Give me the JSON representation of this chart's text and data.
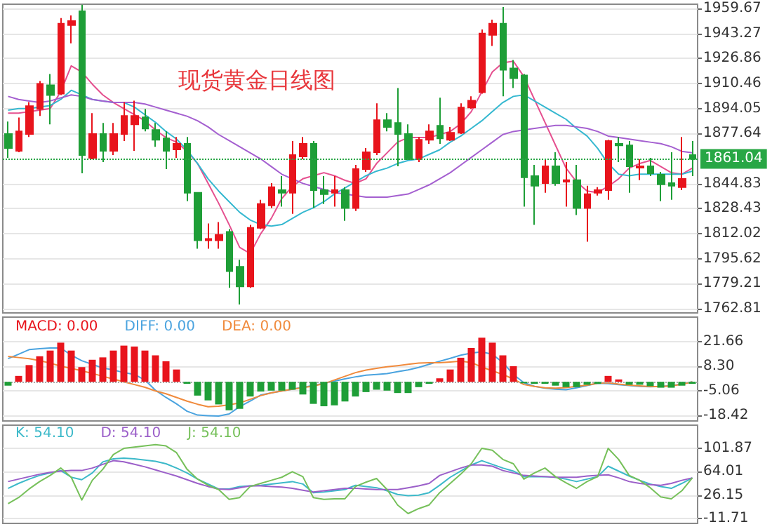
{
  "chart_data": [
    {
      "type": "candlestick",
      "title": "现货黄金日线图",
      "categories": [
        null,
        null,
        null,
        null,
        null,
        null,
        null,
        null,
        null,
        null,
        null,
        null,
        null,
        null,
        null,
        null,
        null,
        null,
        null,
        null,
        null,
        null,
        null,
        null,
        null,
        null,
        null,
        null,
        null,
        null,
        null,
        null,
        null,
        null,
        null,
        null,
        null,
        null,
        null,
        null,
        null,
        null,
        null,
        null,
        null,
        null,
        null,
        null,
        null,
        null,
        null,
        null,
        null,
        null,
        null,
        null,
        null,
        null,
        null,
        null,
        null,
        null,
        null,
        null,
        null,
        null
      ],
      "ohlc": [
        [
          1877.3,
          1885.5,
          1861.7,
          1868.1
        ],
        [
          1866.3,
          1888.2,
          1865.4,
          1879.1
        ],
        [
          1877.3,
          1898.3,
          1875.4,
          1895.6
        ],
        [
          1893.8,
          1912.1,
          1889.2,
          1910.2
        ],
        [
          1909.3,
          1916.6,
          1883.7,
          1902.9
        ],
        [
          1903.8,
          1953.3,
          1902.9,
          1949.6
        ],
        [
          1948.7,
          1955.1,
          1936.8,
          1951.4
        ],
        [
          1957.8,
          1962,
          1851.6,
          1863.5
        ],
        [
          1861.7,
          1891.0,
          1860.8,
          1877.3
        ],
        [
          1877.3,
          1884.6,
          1858.9,
          1866.3
        ],
        [
          1866.3,
          1884.6,
          1863.5,
          1877.3
        ],
        [
          1877.3,
          1898.3,
          1872.7,
          1889.2
        ],
        [
          1883.7,
          1899.2,
          1866.3,
          1889.2
        ],
        [
          1888.3,
          1893.8,
          1879.1,
          1880.9
        ],
        [
          1880.0,
          1884.6,
          1869.0,
          1873.6
        ],
        [
          1874.5,
          1879.1,
          1854.4,
          1866.3
        ],
        [
          1867.2,
          1875.4,
          1861.7,
          1870.9
        ],
        [
          1870.9,
          1875.4,
          1833.3,
          1838.8
        ],
        [
          1838.8,
          1838.8,
          1802.2,
          1807.7
        ],
        [
          1807.7,
          1818.7,
          1802.2,
          1808.6
        ],
        [
          1807.7,
          1819.6,
          1802.2,
          1811.3
        ],
        [
          1813.2,
          1815.0,
          1776.5,
          1787.5
        ],
        [
          1790.3,
          1794.9,
          1765.6,
          1777.5
        ],
        [
          1777.5,
          1817.8,
          1776.5,
          1815.9
        ],
        [
          1815.9,
          1834.2,
          1815.0,
          1831.5
        ],
        [
          1830.6,
          1845.2,
          1828.8,
          1842.5
        ],
        [
          1840.6,
          1849.8,
          1829.7,
          1838.8
        ],
        [
          1838.8,
          1872.7,
          1825.1,
          1863.5
        ],
        [
          1862.6,
          1875.4,
          1860.8,
          1870.9
        ],
        [
          1870.9,
          1872.7,
          1828.8,
          1840.6
        ],
        [
          1840.6,
          1849.8,
          1831.5,
          1837.9
        ],
        [
          1838.8,
          1849.8,
          1829.7,
          1840.6
        ],
        [
          1840.6,
          1842.5,
          1820.5,
          1828.8
        ],
        [
          1828.8,
          1857.1,
          1826.9,
          1854.4
        ],
        [
          1854.4,
          1868.1,
          1852.5,
          1865.4
        ],
        [
          1865.4,
          1897.4,
          1863.5,
          1886.4
        ],
        [
          1886.4,
          1891.0,
          1879.1,
          1881.9
        ],
        [
          1884.6,
          1907.5,
          1856.2,
          1877.3
        ],
        [
          1877.3,
          1883.7,
          1860.8,
          1860.8
        ],
        [
          1860.8,
          1875.4,
          1858.9,
          1873.6
        ],
        [
          1873.6,
          1883.7,
          1870.9,
          1879.1
        ],
        [
          1882.8,
          1901.1,
          1870.9,
          1874.5
        ],
        [
          1873.6,
          1881.9,
          1872.7,
          1878.2
        ],
        [
          1878.2,
          1897.4,
          1877.3,
          1894.7
        ],
        [
          1894.7,
          1902.0,
          1893.8,
          1899.2
        ],
        [
          1904.7,
          1945.9,
          1903.8,
          1943.2
        ],
        [
          1942.3,
          1952.3,
          1935.0,
          1949.6
        ],
        [
          1949.6,
          1960.6,
          1902.0,
          1919.4
        ],
        [
          1920.3,
          1925.8,
          1907.5,
          1913.9
        ],
        [
          1915.7,
          1916.6,
          1829.7,
          1848.9
        ],
        [
          1849.8,
          1857.1,
          1817.8,
          1843.4
        ],
        [
          1845.2,
          1860.8,
          1838.8,
          1856.2
        ],
        [
          1856.2,
          1865.4,
          1843.4,
          1845.2
        ],
        [
          1846.1,
          1858.9,
          1829.7,
          1847.1
        ],
        [
          1847.1,
          1857.1,
          1824.2,
          1828.8
        ],
        [
          1828.8,
          1843.4,
          1806.8,
          1837.9
        ],
        [
          1838.8,
          1842.5,
          1837.0,
          1840.6
        ],
        [
          1840.6,
          1873.6,
          1834.2,
          1872.7
        ],
        [
          1870.9,
          1875.4,
          1858.9,
          1869.9
        ],
        [
          1869.9,
          1872.7,
          1838.8,
          1856.2
        ],
        [
          1855.3,
          1860.8,
          1847.1,
          1856.2
        ],
        [
          1856.2,
          1861.7,
          1849.8,
          1851.6
        ],
        [
          1850.7,
          1852.5,
          1833.3,
          1844.3
        ],
        [
          1845.2,
          1865.4,
          1834.2,
          1843.4
        ],
        [
          1842.5,
          1875.4,
          1840.6,
          1847.9
        ],
        [
          1863.5,
          1872.7,
          1849.8,
          1861.04
        ]
      ],
      "colors": [
        "#1e9e37",
        "#e8141c",
        "#e8141c",
        "#e8141c",
        "#1e9e37",
        "#e8141c",
        "#e8141c",
        "#1e9e37",
        "#e8141c",
        "#1e9e37",
        "#e8141c",
        "#e8141c",
        "#e8141c",
        "#1e9e37",
        "#1e9e37",
        "#1e9e37",
        "#e8141c",
        "#1e9e37",
        "#1e9e37",
        "#e8141c",
        "#e8141c",
        "#1e9e37",
        "#1e9e37",
        "#e8141c",
        "#e8141c",
        "#e8141c",
        "#1e9e37",
        "#e8141c",
        "#e8141c",
        "#1e9e37",
        "#1e9e37",
        "#e8141c",
        "#1e9e37",
        "#e8141c",
        "#e8141c",
        "#e8141c",
        "#1e9e37",
        "#1e9e37",
        "#1e9e37",
        "#e8141c",
        "#e8141c",
        "#1e9e37",
        "#e8141c",
        "#e8141c",
        "#e8141c",
        "#e8141c",
        "#e8141c",
        "#1e9e37",
        "#1e9e37",
        "#1e9e37",
        "#1e9e37",
        "#e8141c",
        "#1e9e37",
        "#e8141c",
        "#1e9e37",
        "#e8141c",
        "#e8141c",
        "#e8141c",
        "#1e9e37",
        "#1e9e37",
        "#e8141c",
        "#1e9e37",
        "#1e9e37",
        "#1e9e37",
        "#e8141c",
        "#1e9e37"
      ],
      "series": [
        {
          "type": "line",
          "color": "#e5508f",
          "values": [
            1891,
            1891,
            1892,
            1893,
            1894,
            1905,
            1922,
            1918,
            1910,
            1903,
            1898,
            1894,
            1890,
            1886,
            1880,
            1875,
            1872,
            1866,
            1858,
            1845,
            1832,
            1818,
            1803,
            1799,
            1812,
            1822,
            1835,
            1843,
            1848,
            1850,
            1852,
            1850,
            1847,
            1845,
            1848,
            1858,
            1865,
            1872,
            1875,
            1875,
            1875,
            1877,
            1879,
            1884,
            1892,
            1905,
            1918,
            1924,
            1925,
            1915,
            1900,
            1885,
            1870,
            1855,
            1846,
            1840,
            1839,
            1843,
            1848,
            1855,
            1858,
            1860,
            1856,
            1852,
            1851,
            1855
          ]
        },
        {
          "type": "line",
          "color": "#35b8d0",
          "values": [
            1893,
            1894,
            1894,
            1895,
            1896,
            1900,
            1906,
            1903,
            1900,
            1899,
            1898,
            1898,
            1895,
            1890,
            1885,
            1879,
            1874,
            1867,
            1858,
            1848,
            1840,
            1833,
            1826,
            1821,
            1818,
            1817,
            1818,
            1822,
            1826,
            1829,
            1833,
            1838,
            1842,
            1846,
            1850,
            1853,
            1855,
            1858,
            1860,
            1861,
            1864,
            1867,
            1872,
            1876,
            1881,
            1886,
            1892,
            1898,
            1902,
            1903,
            1899,
            1895,
            1891,
            1887,
            1881,
            1876,
            1868,
            1858,
            1851,
            1850,
            1851,
            1851,
            1851,
            1851,
            1851,
            1853
          ]
        },
        {
          "type": "line",
          "color": "#a45fd0",
          "values": [
            1902,
            1900,
            1899,
            1898,
            1899,
            1901,
            1903,
            1902,
            1900,
            1899,
            1898,
            1898,
            1898,
            1897,
            1895,
            1893,
            1891,
            1889,
            1886,
            1882,
            1877,
            1873,
            1869,
            1865,
            1861,
            1856,
            1851,
            1848,
            1845,
            1843,
            1841,
            1839,
            1838,
            1837,
            1836,
            1836,
            1836,
            1837,
            1838,
            1841,
            1844,
            1848,
            1852,
            1857,
            1862,
            1867,
            1872,
            1877,
            1879,
            1880,
            1881,
            1882,
            1883,
            1883,
            1882,
            1881,
            1879,
            1876,
            1875,
            1874,
            1873,
            1872,
            1871,
            1869,
            1866,
            1865
          ]
        }
      ],
      "ylim": [
        1760.1,
        1962.4
      ],
      "yticks": [
        1959.67,
        1943.27,
        1926.86,
        1910.46,
        1894.05,
        1877.64,
        1844.83,
        1828.43,
        1812.02,
        1795.62,
        1779.21,
        1762.81
      ],
      "ref_lines": [
        {
          "axis": "y",
          "value": 1861.04,
          "label": "1861.04",
          "color": "#28a745",
          "line_style": "dotted"
        }
      ],
      "grid": "y",
      "tick_labels": "y",
      "marker": "none"
    },
    {
      "type": "bar",
      "categories": [
        null,
        null,
        null,
        null,
        null,
        null,
        null,
        null,
        null,
        null,
        null,
        null,
        null,
        null,
        null,
        null,
        null,
        null,
        null,
        null,
        null,
        null,
        null,
        null,
        null,
        null,
        null,
        null,
        null,
        null,
        null,
        null,
        null,
        null,
        null,
        null,
        null,
        null,
        null,
        null,
        null,
        null,
        null,
        null,
        null,
        null,
        null,
        null,
        null,
        null,
        null,
        null,
        null,
        null,
        null,
        null,
        null,
        null,
        null,
        null,
        null,
        null,
        null,
        null,
        null,
        null
      ],
      "series": [
        {
          "name": "MACD: 0.00",
          "color": "#e8141c",
          "values": [
            -2.1,
            3.2,
            9.1,
            13.9,
            17.0,
            21.3,
            17.0,
            8.0,
            12.0,
            13.3,
            17.0,
            19.7,
            19.2,
            17.0,
            14.4,
            11.2,
            6.7,
            -1.1,
            -7.5,
            -10.1,
            -12.3,
            -15.5,
            -14.7,
            -8.0,
            -5.3,
            -4.8,
            -4.8,
            -4.3,
            -6.9,
            -12.0,
            -13.3,
            -12.8,
            -10.7,
            -8.0,
            -5.6,
            -4.3,
            -4.8,
            -6.1,
            -6.1,
            -2.9,
            -1.1,
            1.9,
            6.7,
            13.1,
            18.4,
            24.0,
            21.3,
            14.4,
            8.5,
            -0.8,
            -1.1,
            -1.1,
            -2.1,
            -2.9,
            -2.9,
            -1.6,
            -1.1,
            3.2,
            1.3,
            -1.6,
            -1.6,
            -2.4,
            -3.2,
            -3.2,
            -2.1,
            -1.1
          ],
          "colors": [
            "#1e9e37",
            "#e8141c",
            "#e8141c",
            "#e8141c",
            "#e8141c",
            "#e8141c",
            "#e8141c",
            "#e8141c",
            "#e8141c",
            "#e8141c",
            "#e8141c",
            "#e8141c",
            "#e8141c",
            "#e8141c",
            "#e8141c",
            "#e8141c",
            "#e8141c",
            "#1e9e37",
            "#1e9e37",
            "#1e9e37",
            "#1e9e37",
            "#1e9e37",
            "#1e9e37",
            "#1e9e37",
            "#1e9e37",
            "#1e9e37",
            "#1e9e37",
            "#1e9e37",
            "#1e9e37",
            "#1e9e37",
            "#1e9e37",
            "#1e9e37",
            "#1e9e37",
            "#1e9e37",
            "#1e9e37",
            "#1e9e37",
            "#1e9e37",
            "#1e9e37",
            "#1e9e37",
            "#1e9e37",
            "#1e9e37",
            "#e8141c",
            "#e8141c",
            "#e8141c",
            "#e8141c",
            "#e8141c",
            "#e8141c",
            "#e8141c",
            "#e8141c",
            "#1e9e37",
            "#1e9e37",
            "#1e9e37",
            "#1e9e37",
            "#1e9e37",
            "#1e9e37",
            "#1e9e37",
            "#1e9e37",
            "#e8141c",
            "#e8141c",
            "#1e9e37",
            "#1e9e37",
            "#1e9e37",
            "#1e9e37",
            "#1e9e37",
            "#1e9e37",
            "#1e9e37"
          ]
        },
        {
          "name": "DIFF: 0.00",
          "type": "line",
          "color": "#4aa3df",
          "values": [
            12.6,
            15,
            17.5,
            18,
            18.4,
            18.4,
            14.5,
            11.5,
            9.5,
            7.5,
            6.5,
            5,
            4,
            1,
            -4.6,
            -8.5,
            -12,
            -16,
            -18.1,
            -18.4,
            -18.6,
            -17.5,
            -13.5,
            -10.5,
            -7.2,
            -6,
            -5,
            -4,
            -3,
            -2,
            -0.8,
            0.4,
            1.6,
            2.7,
            3.6,
            4,
            4.5,
            5.5,
            6.5,
            7.8,
            9.5,
            11.2,
            12.8,
            14.5,
            15.6,
            16.3,
            15,
            10.5,
            4,
            -0.5,
            -2.5,
            -3.5,
            -4,
            -4.3,
            -3.3,
            -2,
            -0.8,
            -1,
            -1.5,
            -2,
            -2.5,
            -2.7,
            -2.5,
            -2.1,
            -1.2,
            0
          ]
        },
        {
          "name": "DEA: 0.00",
          "type": "line",
          "color": "#f08a3c",
          "values": [
            13.8,
            13.2,
            12.6,
            11.5,
            10.2,
            8.5,
            7.3,
            6,
            4.6,
            3,
            1.5,
            0,
            -1.5,
            -3,
            -5,
            -6.5,
            -8.5,
            -10.5,
            -12.2,
            -13.6,
            -13.3,
            -12.5,
            -11.5,
            -9.5,
            -7.5,
            -6,
            -5,
            -4,
            -3.2,
            -2.3,
            -1,
            1,
            3,
            5,
            6.4,
            7.3,
            8.2,
            8.8,
            9.5,
            10.2,
            10.4,
            10.4,
            10.8,
            11.2,
            10.5,
            8,
            6,
            4,
            1.5,
            -1.5,
            -2.5,
            -3.3,
            -3.5,
            -3.2,
            -2.5,
            -1.8,
            -0.8,
            -0.5,
            -1.3,
            -1.8,
            -2.2,
            -2.6,
            -2.6,
            -2.2,
            -1.4,
            0
          ]
        }
      ],
      "ylim": [
        -21.3,
        35.2
      ],
      "yticks": [
        21.66,
        {
          "value": 8.3,
          "label": "8.30"
        },
        -5.06,
        -18.42
      ],
      "ref_lines": [
        {
          "axis": "y",
          "value": 0,
          "color": "#aaaaaa",
          "line_style": "dotted"
        }
      ],
      "grid": "y",
      "tick_labels": "y",
      "legend": "top left",
      "marker": "none"
    },
    {
      "type": "line",
      "categories": [
        null,
        null,
        null,
        null,
        null,
        null,
        null,
        null,
        null,
        null,
        null,
        null,
        null,
        null,
        null,
        null,
        null,
        null,
        null,
        null,
        null,
        null,
        null,
        null,
        null,
        null,
        null,
        null,
        null,
        null,
        null,
        null,
        null,
        null,
        null,
        null,
        null,
        null,
        null,
        null,
        null,
        null,
        null,
        null,
        null,
        null,
        null,
        null,
        null,
        null,
        null,
        null,
        null,
        null,
        null,
        null,
        null,
        null,
        null,
        null,
        null,
        null,
        null,
        null,
        null,
        null
      ],
      "series": [
        {
          "name": "K: 54.10",
          "color": "#3cb9c9",
          "values": [
            37,
            45,
            52,
            58,
            62,
            66,
            55,
            51,
            62,
            80,
            85,
            86,
            85,
            83,
            81,
            77,
            70,
            62,
            52,
            44,
            36,
            36,
            40,
            41,
            42,
            44,
            46,
            48,
            44,
            30,
            31,
            33,
            35,
            42,
            40,
            38,
            33,
            27,
            25,
            26,
            30,
            42,
            55,
            65,
            75,
            82,
            76,
            70,
            65,
            56,
            56,
            56,
            55,
            52,
            48,
            52,
            56,
            73,
            65,
            57,
            50,
            44,
            40,
            37,
            45,
            54
          ]
        },
        {
          "name": "D: 54.10",
          "color": "#9b5fc9",
          "values": [
            48,
            52,
            56,
            60,
            63,
            65,
            66,
            66,
            70,
            76,
            82,
            80,
            76,
            72,
            67,
            62,
            57,
            51,
            45,
            40,
            36,
            35,
            38,
            41,
            41,
            40,
            39,
            37,
            34,
            31,
            33,
            35,
            37,
            37,
            36,
            35,
            35,
            35,
            38,
            41,
            45,
            58,
            64,
            70,
            75,
            75,
            73,
            66,
            62,
            58,
            57,
            56,
            55,
            55,
            55,
            57,
            58,
            59,
            54,
            48,
            45,
            43,
            42,
            45,
            50,
            54
          ]
        },
        {
          "name": "J: 54.10",
          "color": "#76c05a",
          "values": [
            12,
            22,
            36,
            48,
            58,
            70,
            55,
            18,
            50,
            68,
            92,
            102,
            104,
            106,
            108,
            106,
            95,
            68,
            52,
            42,
            35,
            19,
            22,
            40,
            45,
            50,
            55,
            64,
            56,
            22,
            19,
            20,
            20,
            40,
            47,
            53,
            35,
            10,
            -4,
            4,
            10,
            30,
            45,
            60,
            77,
            102,
            99,
            84,
            77,
            52,
            62,
            70,
            56,
            46,
            37,
            48,
            56,
            102,
            84,
            58,
            50,
            38,
            23,
            20,
            33,
            54
          ]
        }
      ],
      "ylim": [
        -20,
        139.7
      ],
      "yticks": [
        101.87,
        64.01,
        26.15,
        -11.71
      ],
      "grid": "y",
      "tick_labels": "y",
      "legend": "top left",
      "marker": "none"
    }
  ]
}
